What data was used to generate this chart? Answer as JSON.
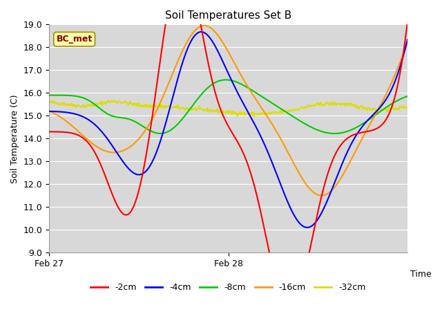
{
  "title": "Soil Temperatures Set B",
  "ylabel": "Soil Temperature (C)",
  "ylim": [
    9.0,
    19.0
  ],
  "yticks": [
    9.0,
    10.0,
    11.0,
    12.0,
    13.0,
    14.0,
    15.0,
    16.0,
    17.0,
    18.0,
    19.0
  ],
  "xtick_positions": [
    0.0,
    0.5,
    1.0
  ],
  "xtick_labels": [
    "Feb 27",
    "Feb 28",
    "Time"
  ],
  "bg_color": "#d8d8d8",
  "grid_color": "#ffffff",
  "legend_text": "BC_met",
  "legend_box_color": "#ffffaa",
  "legend_box_edge": "#aa8800",
  "legend_text_color": "#880000",
  "series_colors": {
    "2cm": "#ff0000",
    "4cm": "#0000ff",
    "8cm": "#00cc00",
    "16cm": "#ff9900",
    "32cm": "#dddd00"
  },
  "series_labels": [
    "-2cm",
    "-4cm",
    "-8cm",
    "-16cm",
    "-32cm"
  ]
}
